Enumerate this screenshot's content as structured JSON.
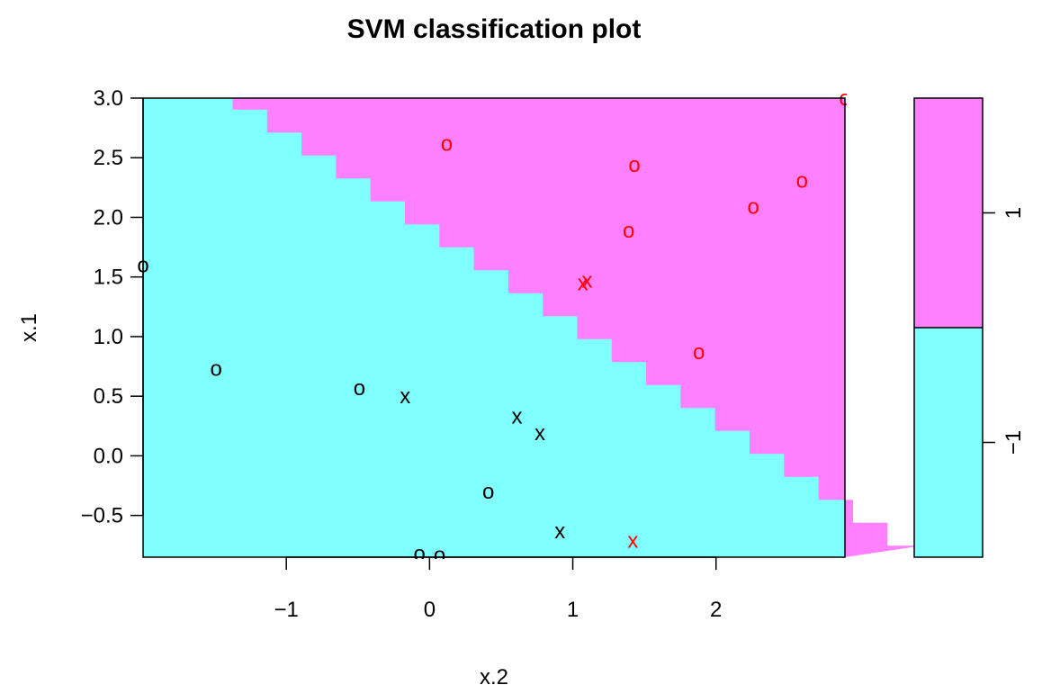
{
  "chart_data": {
    "type": "scatter",
    "title": "SVM classification plot",
    "xlabel": "x.2",
    "ylabel": "x.1",
    "xlim": [
      -2.0,
      2.9
    ],
    "ylim": [
      -0.85,
      3.0
    ],
    "x_ticks": [
      -1,
      0,
      1,
      2
    ],
    "x_tick_labels": [
      "−1",
      "0",
      "1",
      "2"
    ],
    "y_ticks": [
      -0.5,
      0.0,
      0.5,
      1.0,
      1.5,
      2.0,
      2.5,
      3.0
    ],
    "y_tick_labels": [
      "−0.5",
      "0.0",
      "0.5",
      "1.0",
      "1.5",
      "2.0",
      "2.5",
      "3.0"
    ],
    "grid": false,
    "decision_boundary": {
      "description": "x.1 + 0.8*x.2 = 1.9 (staircase rendered)",
      "regions": [
        {
          "class": "-1",
          "color": "#80FFFF"
        },
        {
          "class": "1",
          "color": "#FF80FF"
        }
      ]
    },
    "legend": {
      "placement": "right",
      "levels": [
        {
          "label": "1",
          "color": "#FF80FF"
        },
        {
          "label": "−1",
          "color": "#80FFFF"
        }
      ]
    },
    "point_colors": {
      "class_-1": "#000000",
      "class_1": "#FF0000"
    },
    "points": [
      {
        "x": -2.0,
        "y": 1.6,
        "symbol": "o",
        "class": "-1"
      },
      {
        "x": -1.49,
        "y": 0.73,
        "symbol": "o",
        "class": "-1"
      },
      {
        "x": -0.49,
        "y": 0.57,
        "symbol": "o",
        "class": "-1"
      },
      {
        "x": -0.17,
        "y": 0.5,
        "symbol": "x",
        "class": "-1"
      },
      {
        "x": 0.61,
        "y": 0.33,
        "symbol": "x",
        "class": "-1"
      },
      {
        "x": 0.77,
        "y": 0.19,
        "symbol": "x",
        "class": "-1"
      },
      {
        "x": 0.41,
        "y": -0.3,
        "symbol": "o",
        "class": "-1"
      },
      {
        "x": 0.91,
        "y": -0.63,
        "symbol": "x",
        "class": "-1"
      },
      {
        "x": -0.07,
        "y": -0.82,
        "symbol": "o",
        "class": "-1"
      },
      {
        "x": 0.07,
        "y": -0.83,
        "symbol": "o",
        "class": "-1"
      },
      {
        "x": 1.42,
        "y": -0.71,
        "symbol": "x",
        "class": "1"
      },
      {
        "x": 0.12,
        "y": 2.62,
        "symbol": "o",
        "class": "1"
      },
      {
        "x": 1.43,
        "y": 2.44,
        "symbol": "o",
        "class": "1"
      },
      {
        "x": 1.39,
        "y": 1.89,
        "symbol": "o",
        "class": "1"
      },
      {
        "x": 2.26,
        "y": 2.09,
        "symbol": "o",
        "class": "1"
      },
      {
        "x": 2.6,
        "y": 2.31,
        "symbol": "o",
        "class": "1"
      },
      {
        "x": 2.9,
        "y": 3.0,
        "symbol": "o",
        "class": "1"
      },
      {
        "x": 1.1,
        "y": 1.47,
        "symbol": "x",
        "class": "1"
      },
      {
        "x": 1.07,
        "y": 1.45,
        "symbol": "x",
        "class": "1"
      },
      {
        "x": 1.88,
        "y": 0.87,
        "symbol": "o",
        "class": "1"
      }
    ]
  }
}
